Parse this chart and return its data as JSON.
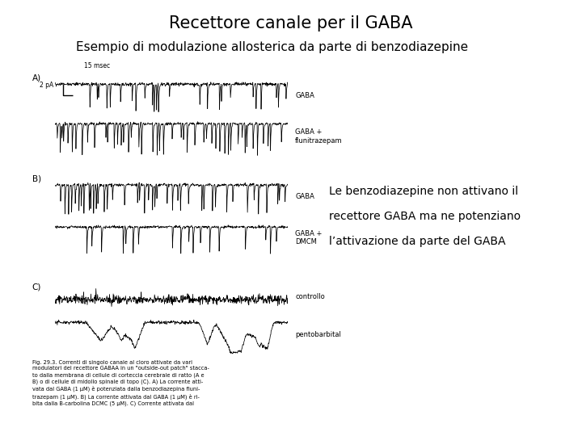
{
  "title": "Recettore canale per il GABA",
  "subtitle": "Esempio di modulazione allosterica da parte di benzodiazepine",
  "annotation_lines": [
    "Le benzodiazepine non attivano il",
    "recettore GABA ma ne potenziano",
    "l’attivazione da parte del GABA"
  ],
  "bg_color": "#ffffff",
  "title_fontsize": 15,
  "subtitle_fontsize": 11,
  "annotation_fontsize": 10,
  "fig_width": 7.2,
  "fig_height": 5.4,
  "dpi": 100,
  "caption": "Fig. 29.3. Correnti di singolo canale al cloro attivate da vari\nmodulatori del recettore GABAA in un \"outside-out patch\" stacca-\nto dalla membrana di cellule di corteccia cerebrale di ratto (A e\nB) o di cellule di midollo spinale di topo (C). A) La corrente atti-\nvata dal GABA (1 μM) è potenziata dalla benzodiazepina fluni-\ntrazepam (1 μM). B) La corrente attivata dal GABA (1 μM) è ri-\nbita dalla B-carbolina DCMC (5 μM). C) Corrente attivata dal"
}
